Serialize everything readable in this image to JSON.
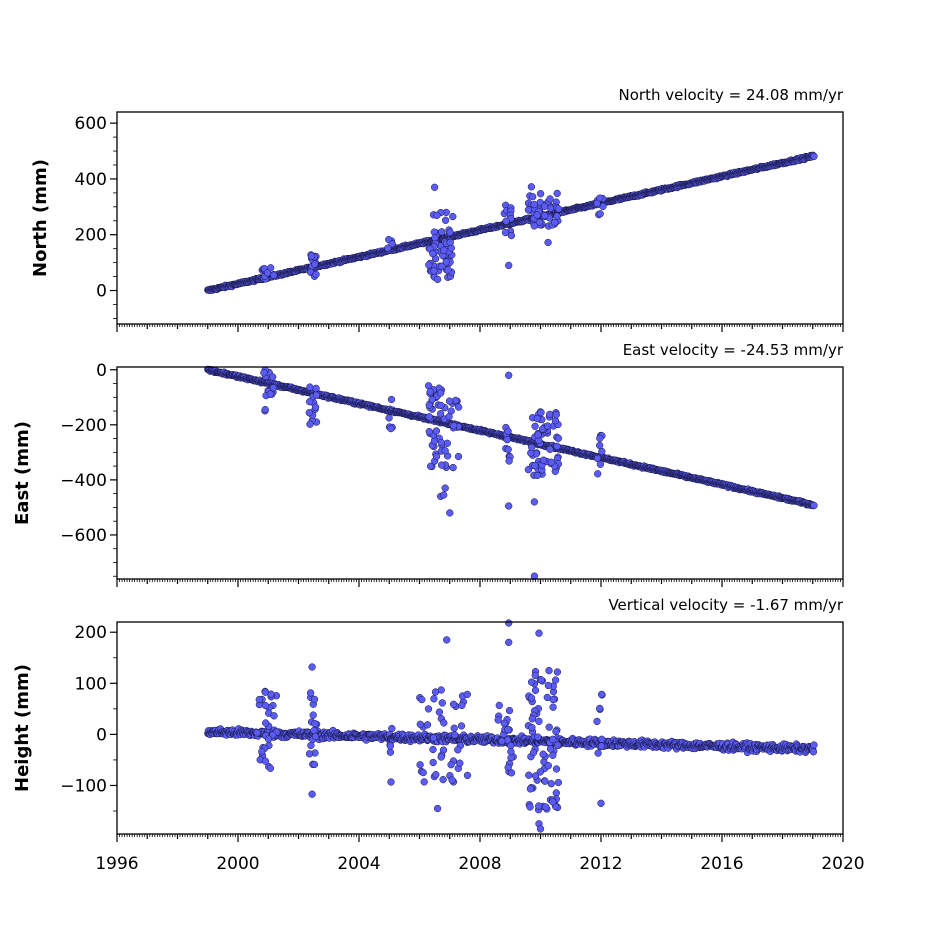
{
  "chart_data": [
    {
      "type": "scatter",
      "title": "North velocity = 24.08 mm/yr",
      "xlabel": "",
      "ylabel": "North (mm)",
      "xlim": [
        1996,
        2020
      ],
      "ylim": [
        -120,
        640
      ],
      "yticks": [
        0,
        200,
        400,
        600
      ],
      "velocity_mm_per_yr": 24.08,
      "intercept_mm": 0,
      "start_year": 1999.0,
      "end_year": 2019.05,
      "noise_mm": 4,
      "offsets": [],
      "outlier_clusters": [
        {
          "t0": 2000.8,
          "t1": 2001.2,
          "count": 14,
          "low": 40,
          "high": 90
        },
        {
          "t0": 2002.4,
          "t1": 2002.6,
          "count": 14,
          "low": 50,
          "high": 130
        },
        {
          "t0": 2004.95,
          "t1": 2005.1,
          "count": 4,
          "low": 145,
          "high": 185
        },
        {
          "t0": 2006.3,
          "t1": 2007.1,
          "count": 55,
          "low": 40,
          "high": 280
        },
        {
          "t0": 2008.8,
          "t1": 2009.05,
          "count": 12,
          "low": 190,
          "high": 320
        },
        {
          "t0": 2009.6,
          "t1": 2010.6,
          "count": 50,
          "low": 230,
          "high": 350
        },
        {
          "t0": 2011.85,
          "t1": 2012.1,
          "count": 8,
          "low": 270,
          "high": 345
        }
      ],
      "isolated_points": [
        {
          "x": 2006.5,
          "y": 370
        },
        {
          "x": 2009.7,
          "y": 372
        },
        {
          "x": 2008.95,
          "y": 90
        },
        {
          "x": 2010.25,
          "y": 172
        },
        {
          "x": 2006.6,
          "y": 40
        }
      ],
      "marker_color": "#5b5bf5",
      "edge_color": "#14143c"
    },
    {
      "type": "scatter",
      "title": "East velocity = -24.53 mm/yr",
      "xlabel": "",
      "ylabel": "East (mm)",
      "xlim": [
        1996,
        2020
      ],
      "ylim": [
        -760,
        10
      ],
      "yticks": [
        0,
        -200,
        -400,
        -600
      ],
      "velocity_mm_per_yr": -24.53,
      "intercept_mm": 0,
      "start_year": 1999.0,
      "end_year": 2019.05,
      "noise_mm": 4,
      "offsets": [],
      "outlier_clusters": [
        {
          "t0": 2000.8,
          "t1": 2001.2,
          "count": 16,
          "low": -150,
          "high": 0
        },
        {
          "t0": 2002.35,
          "t1": 2002.6,
          "count": 14,
          "low": -200,
          "high": -40
        },
        {
          "t0": 2004.95,
          "t1": 2005.1,
          "count": 5,
          "low": -240,
          "high": -100
        },
        {
          "t0": 2006.3,
          "t1": 2007.3,
          "count": 60,
          "low": -360,
          "high": -50
        },
        {
          "t0": 2008.85,
          "t1": 2009.05,
          "count": 10,
          "low": -340,
          "high": -160
        },
        {
          "t0": 2009.6,
          "t1": 2010.6,
          "count": 60,
          "low": -390,
          "high": -150
        },
        {
          "t0": 2011.85,
          "t1": 2012.05,
          "count": 8,
          "low": -380,
          "high": -220
        }
      ],
      "isolated_points": [
        {
          "x": 2006.7,
          "y": -460
        },
        {
          "x": 2006.8,
          "y": -455
        },
        {
          "x": 2006.85,
          "y": -430
        },
        {
          "x": 2007.0,
          "y": -520
        },
        {
          "x": 2008.95,
          "y": -20
        },
        {
          "x": 2008.95,
          "y": -495
        },
        {
          "x": 2009.8,
          "y": -480
        },
        {
          "x": 2009.8,
          "y": -750
        }
      ],
      "marker_color": "#5b5bf5",
      "edge_color": "#14143c"
    },
    {
      "type": "scatter",
      "title": "Vertical velocity = -1.67 mm/yr",
      "xlabel": "",
      "ylabel": "Height (mm)",
      "xlim": [
        1996,
        2020
      ],
      "ylim": [
        -195,
        220
      ],
      "yticks": [
        -100,
        0,
        100,
        200
      ],
      "xticks": [
        1996,
        2000,
        2004,
        2008,
        2012,
        2016,
        2020
      ],
      "velocity_mm_per_yr": -1.67,
      "intercept_mm": 5,
      "start_year": 1999.0,
      "end_year": 2019.05,
      "noise_mm": 7,
      "offsets": [],
      "outlier_clusters": [
        {
          "t0": 2000.6,
          "t1": 2001.3,
          "count": 30,
          "low": -75,
          "high": 90
        },
        {
          "t0": 2002.35,
          "t1": 2002.6,
          "count": 16,
          "low": -60,
          "high": 85
        },
        {
          "t0": 2004.95,
          "t1": 2005.1,
          "count": 5,
          "low": -95,
          "high": 30
        },
        {
          "t0": 2006.0,
          "t1": 2007.6,
          "count": 45,
          "low": -100,
          "high": 100
        },
        {
          "t0": 2008.6,
          "t1": 2009.1,
          "count": 22,
          "low": -95,
          "high": 60
        },
        {
          "t0": 2009.6,
          "t1": 2010.6,
          "count": 80,
          "low": -150,
          "high": 125
        },
        {
          "t0": 2011.85,
          "t1": 2012.05,
          "count": 8,
          "low": -80,
          "high": 80
        }
      ],
      "isolated_points": [
        {
          "x": 2002.45,
          "y": 132
        },
        {
          "x": 2002.45,
          "y": -117
        },
        {
          "x": 2006.6,
          "y": -145
        },
        {
          "x": 2006.9,
          "y": 185
        },
        {
          "x": 2008.95,
          "y": 218
        },
        {
          "x": 2008.95,
          "y": 180
        },
        {
          "x": 2009.95,
          "y": 198
        },
        {
          "x": 2009.95,
          "y": -175
        },
        {
          "x": 2010.0,
          "y": -185
        },
        {
          "x": 2012.0,
          "y": -135
        }
      ],
      "marker_color": "#5b5bf5",
      "edge_color": "#14143c"
    }
  ]
}
